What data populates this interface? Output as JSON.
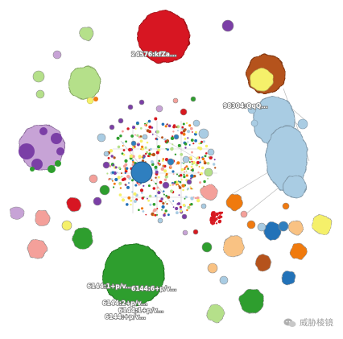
{
  "graph": {
    "cluster_labels": {
      "red_top": "24576:kfZa...",
      "lightblue": "98304:QqQ...",
      "green_1": "6144:1+p/v...",
      "green_2": "6144:6+p/v...",
      "green_3": "6144:2+p/v...",
      "green_4": "6144:1+p/v...",
      "green_5": "6144:+p/v..."
    }
  },
  "watermark": {
    "text": "威胁棱镜"
  },
  "colors": {
    "red": "#d71920",
    "green": "#2e9e2e",
    "light_blue": "#a9cce3",
    "purple": "#7b3fa6",
    "light_purple": "#c7a3d6",
    "brown": "#b5521c",
    "yellow": "#f5f06a",
    "light_green": "#b5e08a",
    "salmon": "#f4a09a",
    "orange": "#f07a10",
    "peach": "#f9c283",
    "dark_blue": "#2472b8",
    "steel_blue": "#2f7fbf",
    "edge": "#b8b8b8"
  }
}
